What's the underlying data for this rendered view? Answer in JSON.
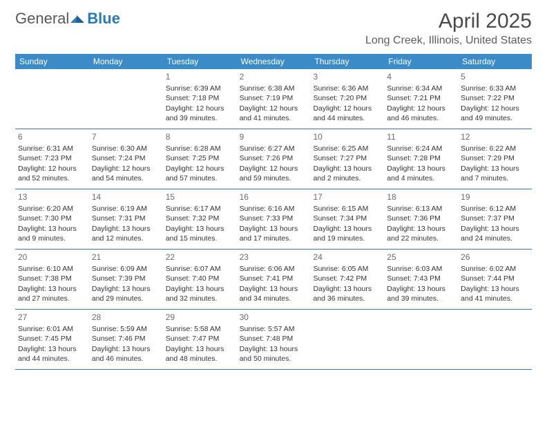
{
  "brand": {
    "word1": "General",
    "word2": "Blue",
    "accent_color": "#2a7ab8",
    "text_color": "#57585a"
  },
  "header": {
    "title": "April 2025",
    "location": "Long Creek, Illinois, United States"
  },
  "colors": {
    "header_band": "#3b8bc8",
    "rule": "#3b74a5",
    "background": "#ffffff"
  },
  "day_names": [
    "Sunday",
    "Monday",
    "Tuesday",
    "Wednesday",
    "Thursday",
    "Friday",
    "Saturday"
  ],
  "weeks": [
    [
      null,
      null,
      {
        "d": "1",
        "sr": "6:39 AM",
        "ss": "7:18 PM",
        "dl": "12 hours and 39 minutes."
      },
      {
        "d": "2",
        "sr": "6:38 AM",
        "ss": "7:19 PM",
        "dl": "12 hours and 41 minutes."
      },
      {
        "d": "3",
        "sr": "6:36 AM",
        "ss": "7:20 PM",
        "dl": "12 hours and 44 minutes."
      },
      {
        "d": "4",
        "sr": "6:34 AM",
        "ss": "7:21 PM",
        "dl": "12 hours and 46 minutes."
      },
      {
        "d": "5",
        "sr": "6:33 AM",
        "ss": "7:22 PM",
        "dl": "12 hours and 49 minutes."
      }
    ],
    [
      {
        "d": "6",
        "sr": "6:31 AM",
        "ss": "7:23 PM",
        "dl": "12 hours and 52 minutes."
      },
      {
        "d": "7",
        "sr": "6:30 AM",
        "ss": "7:24 PM",
        "dl": "12 hours and 54 minutes."
      },
      {
        "d": "8",
        "sr": "6:28 AM",
        "ss": "7:25 PM",
        "dl": "12 hours and 57 minutes."
      },
      {
        "d": "9",
        "sr": "6:27 AM",
        "ss": "7:26 PM",
        "dl": "12 hours and 59 minutes."
      },
      {
        "d": "10",
        "sr": "6:25 AM",
        "ss": "7:27 PM",
        "dl": "13 hours and 2 minutes."
      },
      {
        "d": "11",
        "sr": "6:24 AM",
        "ss": "7:28 PM",
        "dl": "13 hours and 4 minutes."
      },
      {
        "d": "12",
        "sr": "6:22 AM",
        "ss": "7:29 PM",
        "dl": "13 hours and 7 minutes."
      }
    ],
    [
      {
        "d": "13",
        "sr": "6:20 AM",
        "ss": "7:30 PM",
        "dl": "13 hours and 9 minutes."
      },
      {
        "d": "14",
        "sr": "6:19 AM",
        "ss": "7:31 PM",
        "dl": "13 hours and 12 minutes."
      },
      {
        "d": "15",
        "sr": "6:17 AM",
        "ss": "7:32 PM",
        "dl": "13 hours and 15 minutes."
      },
      {
        "d": "16",
        "sr": "6:16 AM",
        "ss": "7:33 PM",
        "dl": "13 hours and 17 minutes."
      },
      {
        "d": "17",
        "sr": "6:15 AM",
        "ss": "7:34 PM",
        "dl": "13 hours and 19 minutes."
      },
      {
        "d": "18",
        "sr": "6:13 AM",
        "ss": "7:36 PM",
        "dl": "13 hours and 22 minutes."
      },
      {
        "d": "19",
        "sr": "6:12 AM",
        "ss": "7:37 PM",
        "dl": "13 hours and 24 minutes."
      }
    ],
    [
      {
        "d": "20",
        "sr": "6:10 AM",
        "ss": "7:38 PM",
        "dl": "13 hours and 27 minutes."
      },
      {
        "d": "21",
        "sr": "6:09 AM",
        "ss": "7:39 PM",
        "dl": "13 hours and 29 minutes."
      },
      {
        "d": "22",
        "sr": "6:07 AM",
        "ss": "7:40 PM",
        "dl": "13 hours and 32 minutes."
      },
      {
        "d": "23",
        "sr": "6:06 AM",
        "ss": "7:41 PM",
        "dl": "13 hours and 34 minutes."
      },
      {
        "d": "24",
        "sr": "6:05 AM",
        "ss": "7:42 PM",
        "dl": "13 hours and 36 minutes."
      },
      {
        "d": "25",
        "sr": "6:03 AM",
        "ss": "7:43 PM",
        "dl": "13 hours and 39 minutes."
      },
      {
        "d": "26",
        "sr": "6:02 AM",
        "ss": "7:44 PM",
        "dl": "13 hours and 41 minutes."
      }
    ],
    [
      {
        "d": "27",
        "sr": "6:01 AM",
        "ss": "7:45 PM",
        "dl": "13 hours and 44 minutes."
      },
      {
        "d": "28",
        "sr": "5:59 AM",
        "ss": "7:46 PM",
        "dl": "13 hours and 46 minutes."
      },
      {
        "d": "29",
        "sr": "5:58 AM",
        "ss": "7:47 PM",
        "dl": "13 hours and 48 minutes."
      },
      {
        "d": "30",
        "sr": "5:57 AM",
        "ss": "7:48 PM",
        "dl": "13 hours and 50 minutes."
      },
      null,
      null,
      null
    ]
  ],
  "labels": {
    "sunrise": "Sunrise: ",
    "sunset": "Sunset: ",
    "daylight": "Daylight: "
  }
}
